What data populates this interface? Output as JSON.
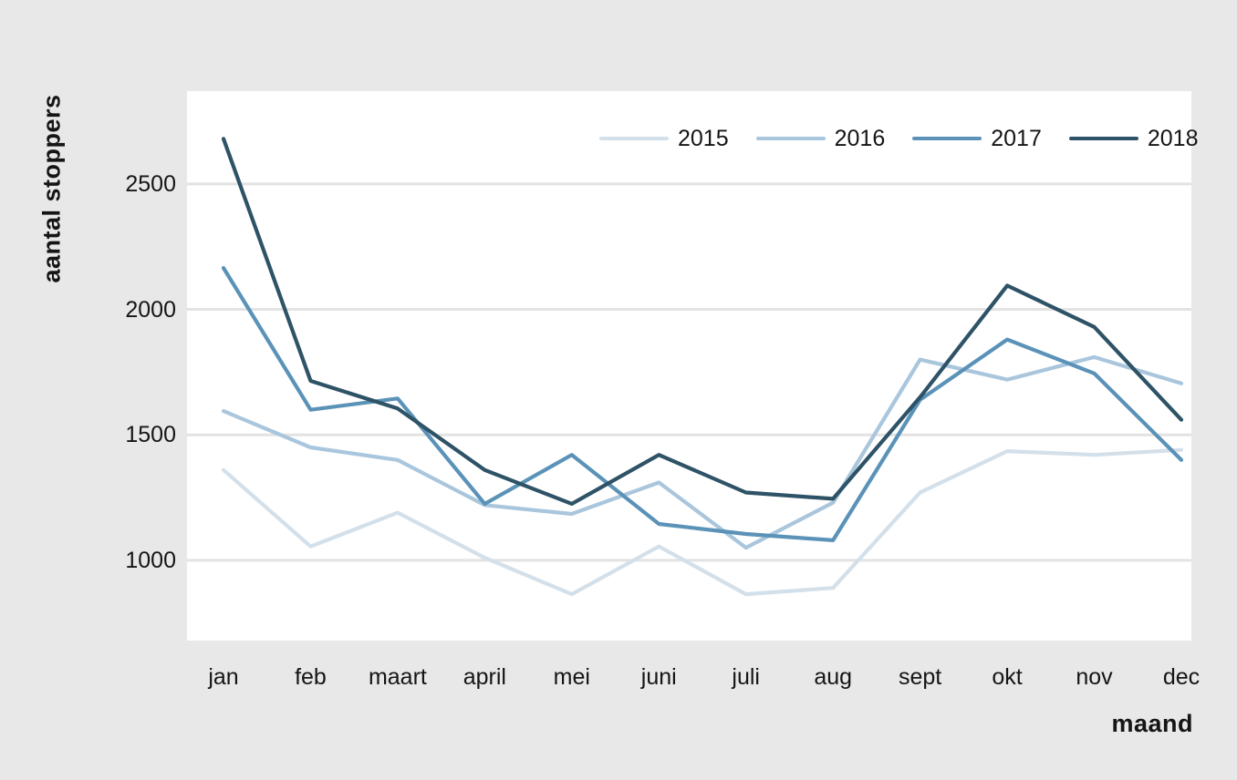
{
  "colors": {
    "background": "#e8e8e8",
    "plot_background": "#ffffff",
    "gridline": "#e3e3e3",
    "text": "#151515"
  },
  "chart_data": {
    "type": "line",
    "title": "",
    "xlabel": "maand",
    "ylabel": "aantal stoppers",
    "categories": [
      "jan",
      "feb",
      "maart",
      "april",
      "mei",
      "juni",
      "juli",
      "aug",
      "sept",
      "okt",
      "nov",
      "dec"
    ],
    "yticks": [
      1000,
      1500,
      2000,
      2500
    ],
    "ylim": [
      680,
      2870
    ],
    "grid": "horizontal",
    "legend_position": "top",
    "series": [
      {
        "name": "2015",
        "color": "#d3e0ea",
        "values": [
          1360,
          1055,
          1190,
          1010,
          865,
          1055,
          865,
          890,
          1270,
          1435,
          1420,
          1440
        ]
      },
      {
        "name": "2016",
        "color": "#a9c6dd",
        "values": [
          1595,
          1450,
          1400,
          1220,
          1185,
          1310,
          1050,
          1230,
          1800,
          1720,
          1810,
          1705
        ]
      },
      {
        "name": "2017",
        "color": "#5b92b8",
        "values": [
          2165,
          1600,
          1645,
          1225,
          1420,
          1145,
          1105,
          1080,
          1640,
          1880,
          1745,
          1400
        ]
      },
      {
        "name": "2018",
        "color": "#2e5266",
        "values": [
          2680,
          1715,
          1605,
          1360,
          1225,
          1420,
          1270,
          1245,
          1650,
          2095,
          1930,
          1560
        ]
      }
    ]
  }
}
